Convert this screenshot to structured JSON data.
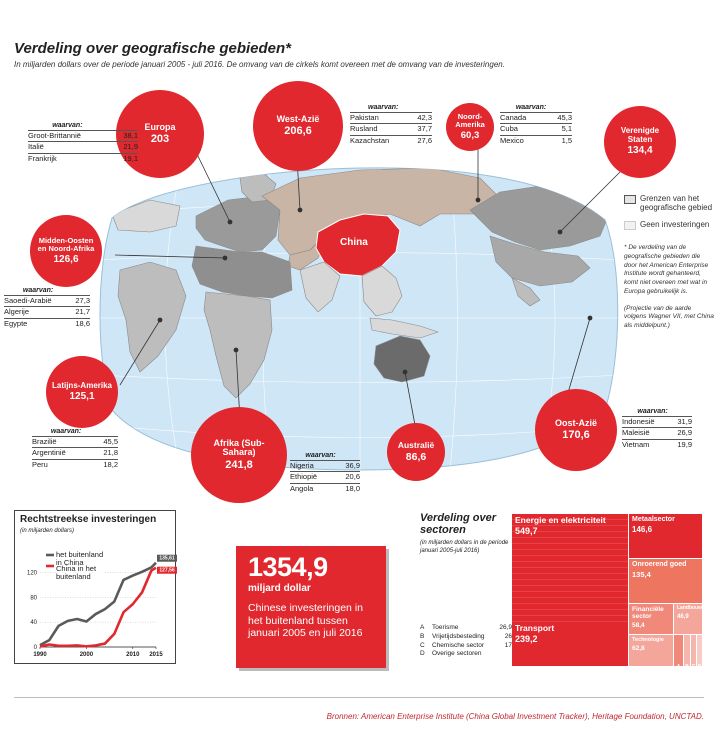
{
  "title": "Verdeling over geografische gebieden*",
  "subtitle": "In miljarden dollars over de periode januari 2005 - juli 2016. De omvang van de cirkels komt overeen met de omvang van de investeringen.",
  "colors": {
    "accent": "#e0282e",
    "ocean": "#cfe6f6",
    "land_none": "#f2f2f2",
    "land_region": "#bdbdbd",
    "westasia": "#c9b5a6",
    "australia": "#6b6b6b",
    "china": "#e0282e"
  },
  "map": {
    "china_label": "China"
  },
  "waarvan_label": "waarvan:",
  "regions": [
    {
      "name": "Europa",
      "value": "203",
      "breakdown": [
        {
          "country": "Groot-Brittannië",
          "value": "38,1"
        },
        {
          "country": "Italië",
          "value": "21,9"
        },
        {
          "country": "Frankrijk",
          "value": "19,1"
        }
      ]
    },
    {
      "name": "West-Azië",
      "value": "206,6",
      "breakdown": [
        {
          "country": "Pakistan",
          "value": "42,3"
        },
        {
          "country": "Rusland",
          "value": "37,7"
        },
        {
          "country": "Kazachstan",
          "value": "27,6"
        }
      ]
    },
    {
      "name": "Noord-Amerika",
      "value": "60,3",
      "breakdown": [
        {
          "country": "Canada",
          "value": "45,3"
        },
        {
          "country": "Cuba",
          "value": "5,1"
        },
        {
          "country": "Mexico",
          "value": "1,5"
        }
      ]
    },
    {
      "name": "Verenigde Staten",
      "value": "134,4",
      "breakdown": []
    },
    {
      "name": "Midden-Oosten en Noord-Afrika",
      "value": "126,6",
      "breakdown": [
        {
          "country": "Saoedi-Arabië",
          "value": "27,3"
        },
        {
          "country": "Algerije",
          "value": "21,7"
        },
        {
          "country": "Egypte",
          "value": "18,6"
        }
      ]
    },
    {
      "name": "Latijns-Amerika",
      "value": "125,1",
      "breakdown": [
        {
          "country": "Brazilië",
          "value": "45,5"
        },
        {
          "country": "Argentinië",
          "value": "21,8"
        },
        {
          "country": "Peru",
          "value": "18,2"
        }
      ]
    },
    {
      "name": "Afrika (Sub-Sahara)",
      "value": "241,8",
      "breakdown": [
        {
          "country": "Nigeria",
          "value": "36,9"
        },
        {
          "country": "Ethiopië",
          "value": "20,6"
        },
        {
          "country": "Angola",
          "value": "18,0"
        }
      ]
    },
    {
      "name": "Australië",
      "value": "86,6",
      "breakdown": []
    },
    {
      "name": "Oost-Azië",
      "value": "170,6",
      "breakdown": [
        {
          "country": "Indonesië",
          "value": "31,9"
        },
        {
          "country": "Maleisië",
          "value": "26,9"
        },
        {
          "country": "Vietnam",
          "value": "19,9"
        }
      ]
    }
  ],
  "legend": {
    "borders": "Grenzen van het geografische gebied",
    "none": "Geen investeringen",
    "footnote": "* De verdeling van de geografische gebieden die door het American Enterprise Institute wordt gehanteerd, komt niet overeen met wat in Europa gebruikelijk is.",
    "projection": "(Projectie van de aarde volgens Wagner VII, met China als middelpunt.)"
  },
  "line_chart": {
    "title": "Rechtstreekse investeringen",
    "subtitle": "(in miljarden dollars)",
    "legend": [
      "het buitenland in China",
      "China in het buitenland"
    ],
    "end_labels": [
      "135,61",
      "127,56"
    ],
    "y_ticks": [
      "0",
      "40",
      "80",
      "120"
    ],
    "x_ticks": [
      "1990",
      "2000",
      "2010",
      "2015"
    ]
  },
  "total": {
    "value": "1354,9",
    "unit": "miljard dollar",
    "desc": "Chinese investeringen in het buitenland tussen januari 2005 en juli 2016"
  },
  "sector": {
    "title": "Verdeling over sectoren",
    "subtitle": "(in miljarden dollars in de periode januari 2005-juli 2016)",
    "small_items": [
      {
        "key": "A",
        "label": "Toerisme",
        "value": "26,9"
      },
      {
        "key": "B",
        "label": "Vrijetijdsbesteding",
        "value": "26"
      },
      {
        "key": "C",
        "label": "Chemische sector",
        "value": "17"
      },
      {
        "key": "D",
        "label": "Overige sectoren",
        "value": ""
      }
    ],
    "tiles": [
      {
        "label": "Energie en elektriciteit",
        "value": "549,7"
      },
      {
        "label": "Transport",
        "value": "239,2"
      },
      {
        "label": "Metaalsector",
        "value": "146,6"
      },
      {
        "label": "Onroerend goed",
        "value": "135,4"
      },
      {
        "label": "Financiële sector",
        "value": "58,4"
      },
      {
        "label": "Landbouw",
        "value": "46,9"
      },
      {
        "label": "Technologie",
        "value": "62,8"
      },
      {
        "label": "A",
        "value": ""
      },
      {
        "label": "B",
        "value": ""
      },
      {
        "label": "C",
        "value": ""
      },
      {
        "label": "D",
        "value": ""
      }
    ]
  },
  "chart_data": [
    {
      "type": "line",
      "title": "Rechtstreekse investeringen",
      "ylabel": "(in miljarden dollars)",
      "xlim": [
        1990,
        2015
      ],
      "ylim": [
        0,
        140
      ],
      "x": [
        1990,
        1992,
        1994,
        1996,
        1998,
        2000,
        2002,
        2004,
        2006,
        2008,
        2010,
        2012,
        2014,
        2015
      ],
      "series": [
        {
          "name": "het buitenland in China",
          "color": "#5a5a5a",
          "values": [
            3,
            11,
            34,
            42,
            45,
            41,
            53,
            61,
            73,
            108,
            115,
            121,
            128,
            135.61
          ]
        },
        {
          "name": "China in het buitenland",
          "color": "#e0282e",
          "values": [
            0.8,
            4,
            2,
            2,
            2.6,
            1,
            2.5,
            5.5,
            21,
            56,
            69,
            88,
            123,
            127.56
          ]
        }
      ]
    },
    {
      "type": "table",
      "title": "Verdeling over sectoren",
      "categories": [
        "Energie en elektriciteit",
        "Transport",
        "Metaalsector",
        "Onroerend goed",
        "Financiële sector",
        "Landbouw",
        "Technologie",
        "Toerisme",
        "Vrijetijdsbesteding",
        "Chemische sector"
      ],
      "values": [
        549.7,
        239.2,
        146.6,
        135.4,
        58.4,
        46.9,
        62.8,
        26.9,
        26,
        17
      ]
    }
  ]
}
